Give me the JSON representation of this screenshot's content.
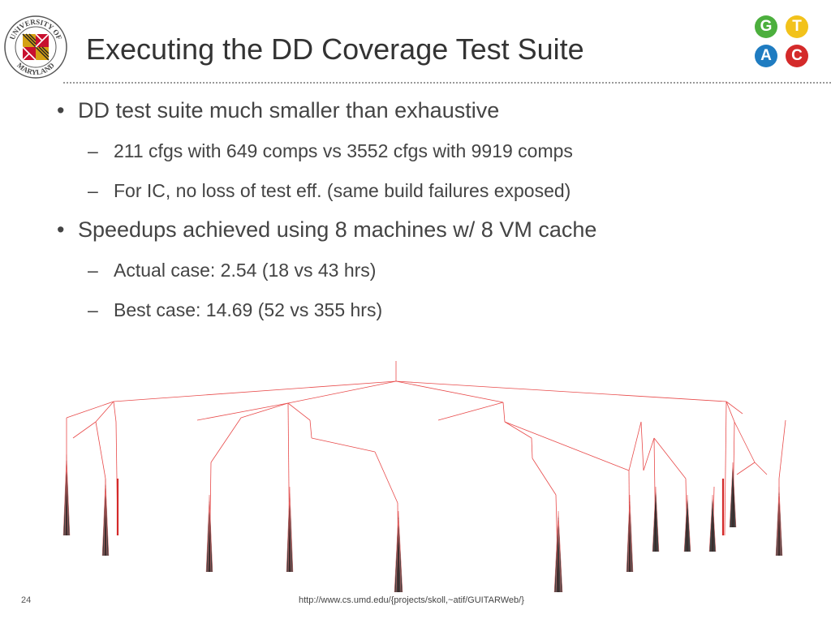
{
  "slide": {
    "title": "Executing the DD Coverage Test Suite",
    "number": "24",
    "footer_url": "http://www.cs.umd.edu/{projects/skoll,~atif/GUITARWeb/}"
  },
  "logo_umd": {
    "text_top": "UNIVERSITY OF",
    "text_bottom": "MARYLAND"
  },
  "logo_gtac": {
    "letters": [
      {
        "letter": "G",
        "color": "#4caf3d"
      },
      {
        "letter": "T",
        "color": "#f2c21b"
      },
      {
        "letter": "A",
        "color": "#1f7cc1"
      },
      {
        "letter": "C",
        "color": "#d42a2a"
      }
    ]
  },
  "bullets": [
    {
      "text": "DD test suite much smaller than exhaustive",
      "subs": [
        "211 cfgs with 649 comps vs 3552 cfgs with 9919 comps",
        "For IC, no loss of test eff. (same build failures exposed)"
      ]
    },
    {
      "text": "Speedups achieved using 8 machines w/ 8 VM cache",
      "subs": [
        "Actual case: 2.54 (18 vs 43 hrs)",
        "Best case: 14.69  (52 vs 355 hrs)"
      ]
    }
  ],
  "symbols": {
    "bullet": "•",
    "dash": "–"
  },
  "tree_color": "#e84a4a"
}
